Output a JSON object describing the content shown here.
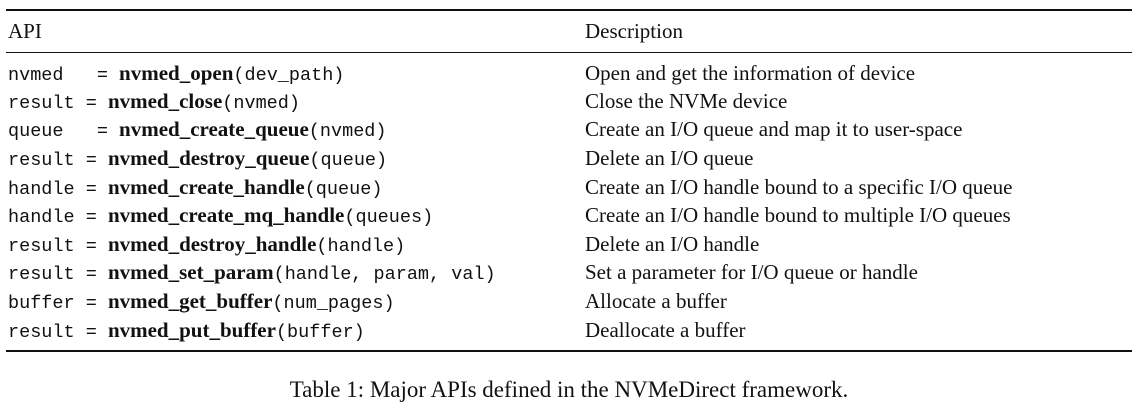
{
  "table": {
    "headers": {
      "api": "API",
      "description": "Description"
    },
    "rows": [
      {
        "ret": "nvmed  ",
        "eq": " = ",
        "func": "nvmed_open",
        "args": "(dev_path)",
        "desc": "Open and get the information of device"
      },
      {
        "ret": "result",
        "eq": " = ",
        "func": "nvmed_close",
        "args": "(nvmed)",
        "desc": "Close the NVMe device"
      },
      {
        "ret": "queue  ",
        "eq": " = ",
        "func": "nvmed_create_queue",
        "args": "(nvmed)",
        "desc": "Create an I/O queue and map it to user-space"
      },
      {
        "ret": "result",
        "eq": " = ",
        "func": "nvmed_destroy_queue",
        "args": "(queue)",
        "desc": "Delete an I/O queue"
      },
      {
        "ret": "handle",
        "eq": " = ",
        "func": "nvmed_create_handle",
        "args": "(queue)",
        "desc": "Create an I/O handle bound to a specific I/O queue"
      },
      {
        "ret": "handle",
        "eq": " = ",
        "func": "nvmed_create_mq_handle",
        "args": "(queues)",
        "desc": "Create an I/O handle bound to multiple I/O queues"
      },
      {
        "ret": "result",
        "eq": " = ",
        "func": "nvmed_destroy_handle",
        "args": "(handle)",
        "desc": "Delete an I/O handle"
      },
      {
        "ret": "result",
        "eq": " = ",
        "func": "nvmed_set_param",
        "args": "(handle, param, val)",
        "desc": "Set a parameter for I/O queue or handle"
      },
      {
        "ret": "buffer",
        "eq": " = ",
        "func": "nvmed_get_buffer",
        "args": "(num_pages)",
        "desc": "Allocate a buffer"
      },
      {
        "ret": "result",
        "eq": " = ",
        "func": "nvmed_put_buffer",
        "args": "(buffer)",
        "desc": "Deallocate a buffer"
      }
    ]
  },
  "caption": "Table 1: Major APIs defined in the NVMeDirect framework."
}
